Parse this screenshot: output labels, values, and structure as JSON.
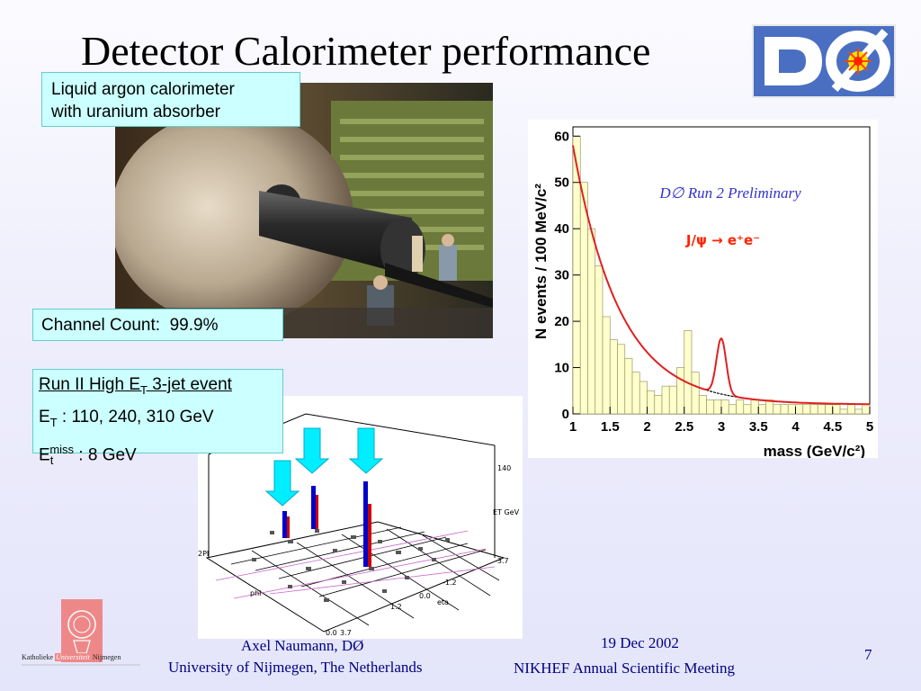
{
  "title": "Detector Calorimeter performance",
  "calorimeter_caption": [
    "Liquid argon calorimeter",
    "with uranium absorber"
  ],
  "channel_count": "Channel Count:  99.9%",
  "jet_event": {
    "heading_pre": "Run II High E",
    "heading_sub": "T",
    "heading_post": " 3-jet event",
    "et_pre": "E",
    "et_sub": "T",
    "et_post": " : 110, 240, 310 GeV",
    "miss_pre": "E",
    "miss_sub": "t",
    "miss_sup": "miss",
    "miss_post": " : 8 GeV"
  },
  "lego_plot": {
    "axis_labels": [
      "140",
      "ET GeV",
      "2PI",
      "phi",
      "eta",
      "-3.7",
      "-1.2",
      "0.0",
      "1.2",
      "0.0",
      "3.7"
    ]
  },
  "chart_data": {
    "type": "bar",
    "title": "D∅ Run 2 Preliminary",
    "annotation": "J/ψ → e⁺e⁻",
    "xlabel": "mass (GeV/c²)",
    "ylabel": "N events / 100 MeV/c²",
    "xlim": [
      1,
      5
    ],
    "ylim": [
      0,
      62
    ],
    "x_ticks": [
      "1",
      "1.5",
      "2",
      "2.5",
      "3",
      "3.5",
      "4",
      "4.5",
      "5"
    ],
    "y_ticks": [
      "0",
      "10",
      "20",
      "30",
      "40",
      "50",
      "60"
    ],
    "bin_edges_start": 1.0,
    "bin_width": 0.1,
    "values": [
      60,
      50,
      40,
      32,
      21,
      16,
      15,
      12,
      9,
      7,
      5,
      4,
      6,
      6,
      10,
      18,
      9,
      4,
      3,
      3,
      3,
      2,
      3,
      2,
      3,
      2,
      3,
      2,
      2,
      2,
      2,
      2,
      2,
      2,
      2,
      2,
      1,
      2,
      1,
      2
    ],
    "colors": {
      "fill": "#ffffcc",
      "bar_edge": "#999966",
      "fit": "#e02020",
      "background_fit": "#000000",
      "title": "#3333cc",
      "annotation": "#ff2200"
    }
  },
  "footer": {
    "author": "Axel Naumann, DØ",
    "university": "University of  Nijmegen, The Netherlands",
    "date": "19 Dec 2002",
    "meeting": "NIKHEF Annual Scientific Meeting",
    "page": "7"
  },
  "logo_kun_text": [
    "Katholieke",
    "Universiteit",
    "Nijmegen"
  ]
}
